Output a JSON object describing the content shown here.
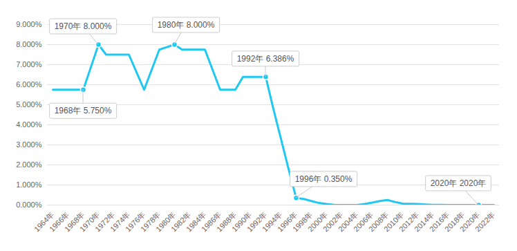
{
  "chart_data": {
    "type": "line",
    "categories": [
      "1964年",
      null,
      "1966年",
      null,
      "1968年",
      null,
      "1970年",
      null,
      "1972年",
      null,
      "1974年",
      null,
      "1976年",
      null,
      "1978年",
      null,
      "1980年",
      null,
      "1982年",
      null,
      "1984年",
      null,
      "1986年",
      null,
      "1988年",
      null,
      "1990年",
      null,
      "1992年",
      null,
      "1994年",
      null,
      "1996年",
      null,
      "1998年",
      null,
      "2000年",
      null,
      "2002年",
      null,
      "2004年",
      null,
      "2006年",
      null,
      "2008年",
      null,
      "2010年",
      null,
      "2012年",
      null,
      "2014年",
      null,
      "2016年",
      null,
      "2018年",
      null,
      "2020年",
      null,
      "2022年"
    ],
    "values": [
      5.75,
      5.75,
      5.75,
      5.75,
      5.75,
      6.875,
      8.0,
      7.5,
      7.5,
      7.5,
      7.5,
      6.625,
      5.75,
      6.75,
      7.75,
      7.875,
      8.0,
      7.75,
      7.75,
      7.75,
      7.75,
      6.75,
      5.75,
      5.75,
      5.75,
      6.386,
      6.386,
      6.386,
      6.386,
      4.8,
      3.3,
      1.8,
      0.35,
      0.3,
      0.2,
      0.1,
      0.05,
      0.01,
      0.002,
      0.002,
      0.002,
      0.05,
      0.12,
      0.2,
      0.25,
      0.15,
      0.07,
      0.06,
      0.05,
      0.03,
      0.01,
      0.005,
      0.002,
      0.002,
      0.002,
      0.002,
      0.002,
      0.002,
      0.002
    ],
    "color": "#1ec8f0",
    "ylim": [
      0,
      9
    ],
    "yticks": [
      {
        "value": 0,
        "label": "0.000%"
      },
      {
        "value": 1,
        "label": "1.000%"
      },
      {
        "value": 2,
        "label": "2.000%"
      },
      {
        "value": 3,
        "label": "3.000%"
      },
      {
        "value": 4,
        "label": "4.000%"
      },
      {
        "value": 5,
        "label": "5.000%"
      },
      {
        "value": 6,
        "label": "6.000%"
      },
      {
        "value": 7,
        "label": "7.000%"
      },
      {
        "value": 8,
        "label": "8.000%"
      },
      {
        "value": 9,
        "label": "9.000%"
      }
    ],
    "grid": true,
    "annotations": [
      {
        "x": "1968年",
        "y": 5.75,
        "text": "1968年 5.750%"
      },
      {
        "x": "1970年",
        "y": 8.0,
        "text": "1970年 8.000%"
      },
      {
        "x": "1980年",
        "y": 8.0,
        "text": "1980年 8.000%"
      },
      {
        "x": "1992年",
        "y": 6.386,
        "text": "1992年 6.386%"
      },
      {
        "x": "1996年",
        "y": 0.35,
        "text": "1996年 0.350%"
      },
      {
        "x": "2020年",
        "y": 0.002,
        "text": "2020年 2020年"
      }
    ]
  }
}
